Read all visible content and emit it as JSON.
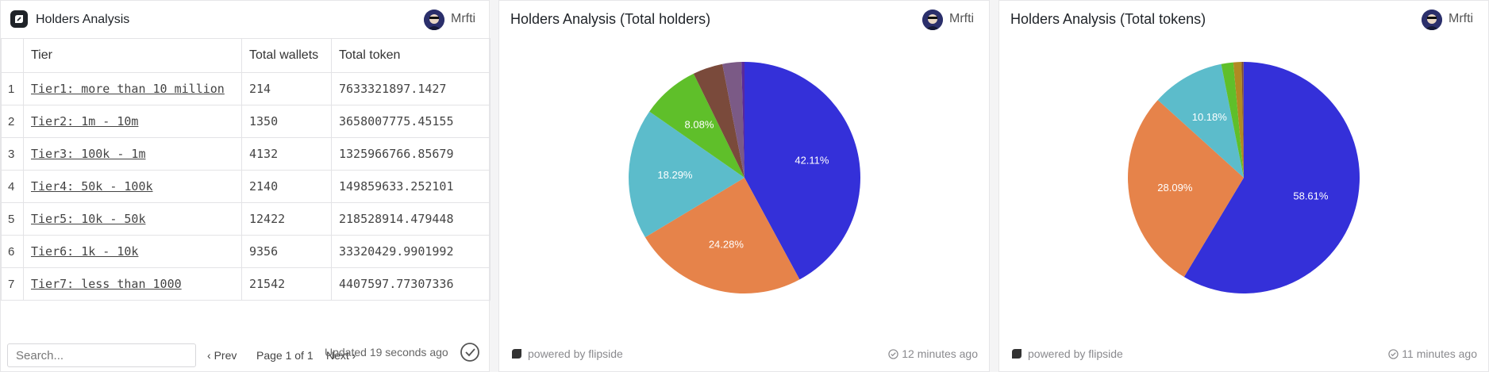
{
  "table_card": {
    "title": "Holders Analysis",
    "user": "Mrfti",
    "columns": [
      "Tier",
      "Total wallets",
      "Total token"
    ],
    "rows": [
      {
        "idx": "1",
        "tier": "Tier1: more than 10 million",
        "wallets": "214",
        "tokens": "7633321897.1427"
      },
      {
        "idx": "2",
        "tier": "Tier2: 1m - 10m",
        "wallets": "1350",
        "tokens": "3658007775.45155"
      },
      {
        "idx": "3",
        "tier": "Tier3: 100k - 1m",
        "wallets": "4132",
        "tokens": "1325966766.85679"
      },
      {
        "idx": "4",
        "tier": "Tier4: 50k - 100k",
        "wallets": "2140",
        "tokens": "149859633.252101"
      },
      {
        "idx": "5",
        "tier": "Tier5: 10k - 50k",
        "wallets": "12422",
        "tokens": "218528914.479448"
      },
      {
        "idx": "6",
        "tier": "Tier6: 1k - 10k",
        "wallets": "9356",
        "tokens": "33320429.9901992"
      },
      {
        "idx": "7",
        "tier": "Tier7: less than 1000",
        "wallets": "21542",
        "tokens": "4407597.77307336"
      }
    ],
    "search_placeholder": "Search...",
    "prev_label": "Prev",
    "page_label": "Page 1 of 1",
    "next_label": "Next",
    "updated_label": "Updated 19 seconds ago"
  },
  "holders_card": {
    "title": "Holders Analysis (Total holders)",
    "user": "Mrfti",
    "powered_by": "powered by flipside",
    "updated": "12 minutes ago"
  },
  "tokens_card": {
    "title": "Holders Analysis (Total tokens)",
    "user": "Mrfti",
    "powered_by": "powered by flipside",
    "updated": "11 minutes ago"
  },
  "chart_data": [
    {
      "type": "pie",
      "title": "Holders Analysis (Total holders)",
      "categories": [
        "Tier7: less than 1000",
        "Tier5: 10k - 50k",
        "Tier6: 1k - 10k",
        "Tier3: 100k - 1m",
        "Tier4: 50k - 100k",
        "Tier2: 1m - 10m",
        "Tier1: more than 10 million"
      ],
      "values": [
        42.11,
        24.28,
        18.29,
        8.08,
        4.18,
        2.64,
        0.42
      ],
      "labels": [
        "42.11%",
        "24.28%",
        "18.29%",
        "8.08%",
        "",
        "",
        ""
      ],
      "colors": [
        "#3430d9",
        "#e6834a",
        "#5cbccb",
        "#5fbf2a",
        "#7a4a3b",
        "#7b5a86",
        "#5a2a9a"
      ]
    },
    {
      "type": "pie",
      "title": "Holders Analysis (Total tokens)",
      "categories": [
        "Tier1: more than 10 million",
        "Tier2: 1m - 10m",
        "Tier3: 100k - 1m",
        "Tier5: 10k - 50k",
        "Tier4: 50k - 100k",
        "Tier6: 1k - 10k",
        "Tier7: less than 1000"
      ],
      "values": [
        58.61,
        28.09,
        10.18,
        1.68,
        1.15,
        0.26,
        0.03
      ],
      "labels": [
        "58.61%",
        "28.09%",
        "10.18%",
        "",
        "",
        "",
        ""
      ],
      "colors": [
        "#3430d9",
        "#e6834a",
        "#5cbccb",
        "#5fbf2a",
        "#b08a22",
        "#7a4a3b",
        "#7b5a86"
      ]
    }
  ]
}
